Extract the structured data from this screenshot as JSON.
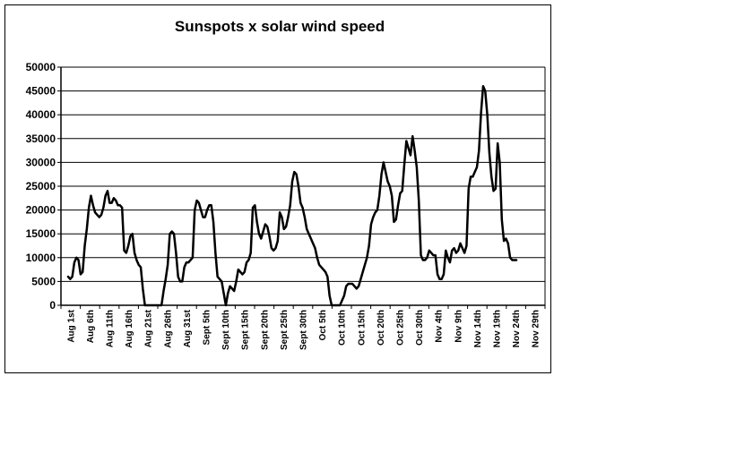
{
  "chart_data": {
    "type": "line",
    "title": "Sunspots x solar wind speed",
    "xlabel": "",
    "ylabel": "",
    "ylim": [
      0,
      50000
    ],
    "yticks": [
      0,
      5000,
      10000,
      15000,
      20000,
      25000,
      30000,
      35000,
      40000,
      45000,
      50000
    ],
    "ytick_labels": [
      "0",
      "5000",
      "10000",
      "15000",
      "20000",
      "25000",
      "30000",
      "35000",
      "40000",
      "45000",
      "50000"
    ],
    "xtick_labels": [
      "Aug 1st",
      "Aug 6th",
      "Aug 11th",
      "Aug 16th",
      "Aug 21st",
      "Aug 26th",
      "Aug 31st",
      "Sept 5th",
      "Sept 10th",
      "Sept 15th",
      "Sept 20th",
      "Sept 25th",
      "Sept 30th",
      "Oct 5th",
      "Oct 10th",
      "Oct 15th",
      "Oct 20th",
      "Oct 25th",
      "Oct 30th",
      "Nov 4th",
      "Nov 9th",
      "Nov 14th",
      "Nov 19th",
      "Nov 24th",
      "Nov 29th"
    ],
    "grid": true,
    "legend": "none",
    "line_color": "#000000",
    "series": [
      {
        "values": [
          6000,
          5500,
          6000,
          9000,
          10000,
          9500,
          6500,
          7000,
          12500,
          16000,
          20500,
          23000,
          21000,
          19500,
          19000,
          18500,
          19000,
          20500,
          23000,
          24000,
          21500,
          21500,
          22500,
          22000,
          21000,
          21000,
          20500,
          11500,
          11000,
          12500,
          14500,
          15000,
          11000,
          9500,
          8500,
          8000,
          3500,
          0,
          0,
          0,
          0,
          0,
          0,
          0,
          0,
          0,
          3000,
          5500,
          8500,
          15000,
          15500,
          15000,
          11000,
          6000,
          5000,
          5000,
          8000,
          9000,
          9000,
          9500,
          10000,
          20000,
          22000,
          21500,
          20000,
          18500,
          18500,
          20000,
          21000,
          21000,
          17500,
          11000,
          6000,
          5500,
          5000,
          2500,
          0,
          2500,
          4000,
          3500,
          3000,
          5000,
          7500,
          7000,
          6500,
          7000,
          9000,
          9500,
          11000,
          20500,
          21000,
          17500,
          15000,
          14000,
          15500,
          17000,
          16500,
          14500,
          12000,
          11500,
          12000,
          13500,
          19500,
          18500,
          16000,
          16500,
          18500,
          21000,
          26000,
          28000,
          27500,
          25000,
          21500,
          20500,
          18500,
          16000,
          15000,
          14000,
          13000,
          12000,
          10000,
          8500,
          8000,
          7500,
          7000,
          6000,
          2000,
          0,
          0,
          0,
          0,
          0,
          1000,
          2000,
          4000,
          4500,
          4500,
          4500,
          4000,
          3500,
          4000,
          5500,
          7000,
          8500,
          10000,
          12500,
          17000,
          18500,
          19500,
          20000,
          23000,
          27500,
          30000,
          28000,
          26000,
          25000,
          23000,
          17500,
          18000,
          21000,
          23500,
          24000,
          29500,
          34500,
          33000,
          31500,
          35500,
          32500,
          29000,
          22000,
          10500,
          9500,
          9500,
          10000,
          11500,
          11000,
          10500,
          10500,
          6500,
          5500,
          5500,
          6500,
          11500,
          10000,
          9000,
          11500,
          12000,
          11000,
          11500,
          13000,
          12000,
          11000,
          12500,
          24500,
          27000,
          27000,
          28000,
          29000,
          32500,
          40500,
          46000,
          45000,
          40000,
          32000,
          27000,
          24000,
          24500,
          34000,
          30000,
          18000,
          13500,
          14000,
          13000,
          10000,
          9500,
          9500,
          9500
        ]
      }
    ]
  }
}
